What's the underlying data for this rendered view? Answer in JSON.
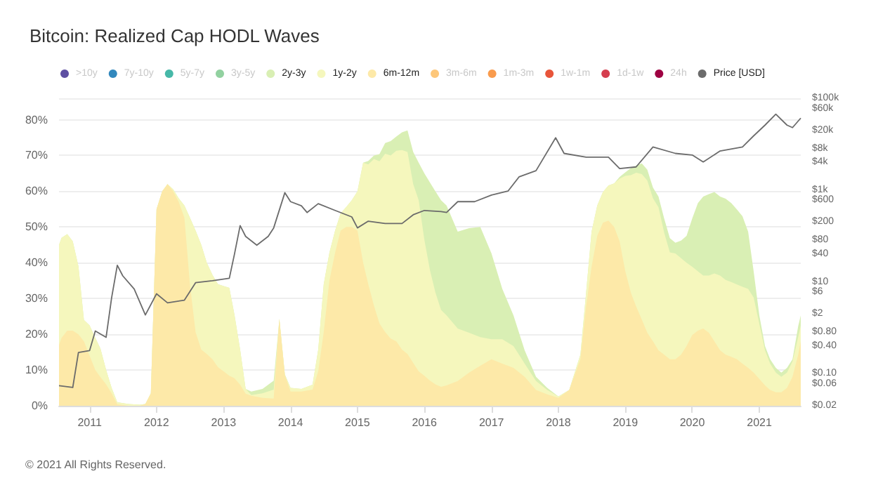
{
  "chart_data": {
    "type": "area",
    "title": "Bitcoin: Realized Cap HODL Waves",
    "annotations": [
      "© 2021 All Rights Reserved."
    ],
    "stacked": true,
    "legend": "top",
    "grid": "y",
    "marker": "none",
    "line_style": "solid",
    "x": [
      "2010-07-18",
      "2010-08",
      "2010-09",
      "2010-10",
      "2010-11",
      "2010-12",
      "2011-01",
      "2011-02",
      "2011-03",
      "2011-04",
      "2011-05",
      "2011-06",
      "2011-08",
      "2011-10",
      "2011-11",
      "2011-12",
      "2012-01",
      "2012-02",
      "2012-03",
      "2012-04",
      "2012-05",
      "2012-06",
      "2012-07",
      "2012-08",
      "2012-09",
      "2012-10",
      "2012-11",
      "2012-12",
      "2013-01",
      "2013-02",
      "2013-03",
      "2013-04",
      "2013-05",
      "2013-06",
      "2013-08",
      "2013-10",
      "2013-11",
      "2013-12",
      "2014-01",
      "2014-03",
      "2014-05",
      "2014-06",
      "2014-07",
      "2014-08",
      "2014-09",
      "2014-10",
      "2014-11",
      "2014-12",
      "2015-01",
      "2015-02",
      "2015-03",
      "2015-04",
      "2015-05",
      "2015-06",
      "2015-07",
      "2015-08",
      "2015-09",
      "2015-10",
      "2015-11",
      "2015-12",
      "2016-01",
      "2016-02",
      "2016-03",
      "2016-04",
      "2016-05",
      "2016-07",
      "2016-09",
      "2016-11",
      "2017-01",
      "2017-03",
      "2017-05",
      "2017-07",
      "2017-09",
      "2017-11",
      "2018-01",
      "2018-03",
      "2018-05",
      "2018-06",
      "2018-07",
      "2018-08",
      "2018-09",
      "2018-10",
      "2018-11",
      "2018-12",
      "2019-01",
      "2019-02",
      "2019-03",
      "2019-04",
      "2019-05",
      "2019-06",
      "2019-07",
      "2019-08",
      "2019-09",
      "2019-10",
      "2019-11",
      "2019-12",
      "2020-01",
      "2020-02",
      "2020-03",
      "2020-04",
      "2020-05",
      "2020-06",
      "2020-07",
      "2020-08",
      "2020-09",
      "2020-10",
      "2020-11",
      "2020-12",
      "2021-01",
      "2021-02",
      "2021-03",
      "2021-04",
      "2021-05",
      "2021-06",
      "2021-07",
      "2021-08",
      "2021-08-15"
    ],
    "xlim": [
      "2010-07-18",
      "2021-08-15"
    ],
    "xticks": [
      "2011",
      "2012",
      "2013",
      "2014",
      "2015",
      "2016",
      "2017",
      "2018",
      "2019",
      "2020",
      "2021"
    ],
    "ylim": [
      0,
      86
    ],
    "yticks": [
      {
        "value": 0,
        "label": "0%"
      },
      {
        "value": 10,
        "label": "10%"
      },
      {
        "value": 20,
        "label": "20%"
      },
      {
        "value": 30,
        "label": "30%"
      },
      {
        "value": 40,
        "label": "40%"
      },
      {
        "value": 50,
        "label": "50%"
      },
      {
        "value": 60,
        "label": "60%"
      },
      {
        "value": 70,
        "label": "70%"
      },
      {
        "value": 80,
        "label": "80%"
      }
    ],
    "log": "y2",
    "y2lim": [
      0.02,
      100000
    ],
    "y2ticks": [
      {
        "value": 0.02,
        "label": "$0.02"
      },
      {
        "value": 0.06,
        "label": "$0.06"
      },
      {
        "value": 0.1,
        "label": "$0.10"
      },
      {
        "value": 0.4,
        "label": "$0.40"
      },
      {
        "value": 0.8,
        "label": "$0.80"
      },
      {
        "value": 2,
        "label": "$2"
      },
      {
        "value": 6,
        "label": "$6"
      },
      {
        "value": 10,
        "label": "$10"
      },
      {
        "value": 40,
        "label": "$40"
      },
      {
        "value": 80,
        "label": "$80"
      },
      {
        "value": 200,
        "label": "$200"
      },
      {
        "value": 600,
        "label": "$600"
      },
      {
        "value": 1000,
        "label": "$1k"
      },
      {
        "value": 4000,
        "label": "$4k"
      },
      {
        "value": 8000,
        "label": "$8k"
      },
      {
        "value": 20000,
        "label": "$20k"
      },
      {
        "value": 60000,
        "label": "$60k"
      },
      {
        "value": 100000,
        "label": "$100k"
      }
    ],
    "series": [
      {
        "name": "24h",
        "color": "#9e0142",
        "values": [
          null,
          null,
          null,
          null,
          null,
          null,
          null,
          null,
          null,
          null,
          null,
          null,
          null,
          null,
          null,
          null,
          null,
          null,
          null,
          null,
          null,
          null,
          null,
          null,
          null,
          null,
          null,
          null,
          null,
          null,
          null,
          null,
          null,
          null,
          null,
          null,
          null,
          null,
          null,
          null,
          null,
          null,
          null,
          null,
          null,
          null,
          null,
          null,
          null,
          null,
          null,
          null,
          null,
          null,
          null,
          null,
          null,
          null,
          null,
          null,
          null,
          null,
          null,
          null,
          null,
          null,
          null,
          null,
          null,
          null,
          null,
          null,
          null,
          null,
          null,
          null,
          null,
          null,
          null,
          null,
          null,
          null,
          null,
          null,
          null,
          null,
          null,
          null,
          null,
          null,
          null,
          null,
          null,
          null,
          null,
          null,
          null,
          null,
          null,
          null,
          null,
          null,
          null,
          null,
          null,
          null,
          null,
          null,
          null,
          null,
          null,
          null,
          null,
          null,
          null,
          null,
          null
        ]
      },
      {
        "name": "1d-1w",
        "color": "#d53e4f",
        "values": [
          null,
          null,
          null,
          null,
          null,
          null,
          null,
          null,
          null,
          null,
          null,
          null,
          null,
          null,
          null,
          null,
          null,
          null,
          null,
          null,
          null,
          null,
          null,
          null,
          null,
          null,
          null,
          null,
          null,
          null,
          null,
          null,
          null,
          null,
          null,
          null,
          null,
          null,
          null,
          null,
          null,
          null,
          null,
          null,
          null,
          null,
          null,
          null,
          null,
          null,
          null,
          null,
          null,
          null,
          null,
          null,
          null,
          null,
          null,
          null,
          null,
          null,
          null,
          null,
          null,
          null,
          null,
          null,
          null,
          null,
          null,
          null,
          null,
          null,
          null,
          null,
          null,
          null,
          null,
          null,
          null,
          null,
          null,
          null,
          null,
          null,
          null,
          null,
          null,
          null,
          null,
          null,
          null,
          null,
          null,
          null,
          null,
          null,
          null,
          null,
          null,
          null,
          null,
          null,
          null,
          null,
          null,
          null,
          null,
          null,
          null,
          null,
          null,
          null,
          null,
          null,
          null
        ]
      },
      {
        "name": "1w-1m",
        "color": "#e8553a",
        "values": [
          null,
          null,
          null,
          null,
          null,
          null,
          null,
          null,
          null,
          null,
          null,
          null,
          null,
          null,
          null,
          null,
          null,
          null,
          null,
          null,
          null,
          null,
          null,
          null,
          null,
          null,
          null,
          null,
          null,
          null,
          null,
          null,
          null,
          null,
          null,
          null,
          null,
          null,
          null,
          null,
          null,
          null,
          null,
          null,
          null,
          null,
          null,
          null,
          null,
          null,
          null,
          null,
          null,
          null,
          null,
          null,
          null,
          null,
          null,
          null,
          null,
          null,
          null,
          null,
          null,
          null,
          null,
          null,
          null,
          null,
          null,
          null,
          null,
          null,
          null,
          null,
          null,
          null,
          null,
          null,
          null,
          null,
          null,
          null,
          null,
          null,
          null,
          null,
          null,
          null,
          null,
          null,
          null,
          null,
          null,
          null,
          null,
          null,
          null,
          null,
          null,
          null,
          null,
          null,
          null,
          null,
          null,
          null,
          null,
          null,
          null,
          null,
          null,
          null,
          null,
          null,
          null
        ]
      },
      {
        "name": "1m-3m",
        "color": "#f99b4d",
        "values": [
          null,
          null,
          null,
          null,
          null,
          null,
          null,
          null,
          null,
          null,
          null,
          null,
          null,
          null,
          null,
          null,
          null,
          null,
          null,
          null,
          null,
          null,
          null,
          null,
          null,
          null,
          null,
          null,
          null,
          null,
          null,
          null,
          null,
          null,
          null,
          null,
          null,
          null,
          null,
          null,
          null,
          null,
          null,
          null,
          null,
          null,
          null,
          null,
          null,
          null,
          null,
          null,
          null,
          null,
          null,
          null,
          null,
          null,
          null,
          null,
          null,
          null,
          null,
          null,
          null,
          null,
          null,
          null,
          null,
          null,
          null,
          null,
          null,
          null,
          null,
          null,
          null,
          null,
          null,
          null,
          null,
          null,
          null,
          null,
          null,
          null,
          null,
          null,
          null,
          null,
          null,
          null,
          null,
          null,
          null,
          null,
          null,
          null,
          null,
          null,
          null,
          null,
          null,
          null,
          null,
          null,
          null,
          null,
          null,
          null,
          null,
          null,
          null,
          null,
          null,
          null,
          null
        ]
      },
      {
        "name": "3m-6m",
        "color": "#fdc77a",
        "values": [
          null,
          null,
          null,
          null,
          null,
          null,
          null,
          null,
          null,
          null,
          null,
          null,
          null,
          null,
          null,
          null,
          null,
          null,
          null,
          null,
          null,
          null,
          null,
          null,
          null,
          null,
          null,
          null,
          null,
          null,
          null,
          null,
          null,
          null,
          null,
          null,
          null,
          null,
          null,
          null,
          null,
          null,
          null,
          null,
          null,
          null,
          null,
          null,
          null,
          null,
          null,
          null,
          null,
          null,
          null,
          null,
          null,
          null,
          null,
          null,
          null,
          null,
          null,
          null,
          null,
          null,
          null,
          null,
          null,
          null,
          null,
          null,
          null,
          null,
          null,
          null,
          null,
          null,
          null,
          null,
          null,
          null,
          null,
          null,
          null,
          null,
          null,
          null,
          null,
          null,
          null,
          null,
          null,
          null,
          null,
          null,
          null,
          null,
          null,
          null,
          null,
          null,
          null,
          null,
          null,
          null,
          null,
          null,
          null,
          null,
          null,
          null,
          null,
          null,
          null,
          null,
          null
        ]
      },
      {
        "name": "6m-12m",
        "color": "#fde9a8",
        "values": [
          17,
          19,
          21,
          21,
          20,
          18,
          14,
          10,
          8,
          6,
          3.5,
          0.4,
          0,
          0,
          0.5,
          3.5,
          55,
          60,
          62,
          60,
          57,
          52.6,
          34,
          20.6,
          15.7,
          14.5,
          13,
          10.8,
          9.6,
          8.4,
          7.7,
          5.9,
          3.4,
          2.8,
          2.2,
          2,
          24.3,
          8.6,
          4,
          4,
          4.5,
          9.6,
          20.6,
          35,
          42.8,
          49,
          50,
          50,
          49,
          40,
          34,
          28,
          23,
          20.6,
          18.8,
          18,
          15.7,
          14.5,
          12,
          9.6,
          8.4,
          7,
          6,
          5.3,
          5.7,
          6.9,
          9.3,
          11.2,
          13,
          11.8,
          10.6,
          8.1,
          4.4,
          3.2,
          2.2,
          4.4,
          13,
          27.8,
          38.9,
          47.5,
          51.2,
          51.8,
          50,
          46,
          37.6,
          31.5,
          27.8,
          24.1,
          20.4,
          18,
          15.5,
          14.3,
          13,
          13,
          14.3,
          16.7,
          19.8,
          21,
          21.6,
          20.4,
          18,
          15.5,
          14.3,
          13.7,
          13,
          11.8,
          10.6,
          9.3,
          7.5,
          5.7,
          4.4,
          3.8,
          3.8,
          5,
          8.1,
          14.3,
          18
        ]
      },
      {
        "name": "1y-2y",
        "color": "#f5f7bd",
        "values": [
          28,
          28,
          27,
          25,
          19,
          6,
          8.5,
          9,
          8,
          4,
          1.5,
          0.6,
          0.5,
          0.3,
          0,
          0,
          0,
          0,
          0,
          0.5,
          1,
          3.4,
          18.6,
          28.4,
          29.3,
          25.5,
          23.6,
          23.2,
          23.9,
          24.6,
          17.8,
          9.8,
          1.3,
          0.2,
          1.3,
          2.5,
          0,
          0,
          1,
          0.7,
          1.4,
          6.1,
          13.4,
          7.8,
          6.2,
          4.8,
          5.6,
          7.5,
          11,
          28,
          33.5,
          41,
          45.4,
          49.9,
          51.2,
          53.3,
          55.8,
          56.5,
          50,
          47.9,
          38,
          30.8,
          25.7,
          21.5,
          19.6,
          14.7,
          11.1,
          8,
          5.6,
          6.8,
          6.1,
          3.7,
          2.5,
          1.2,
          0.4,
          0,
          1.3,
          3.7,
          9.8,
          8.5,
          8.6,
          9.8,
          12.2,
          17.5,
          26.7,
          33,
          37.4,
          40.7,
          42.6,
          40,
          40,
          34.1,
          29.9,
          29.6,
          27,
          23.3,
          19.1,
          16.6,
          14.8,
          16,
          19,
          20.9,
          20.9,
          20.9,
          20.9,
          21.5,
          22.1,
          21,
          15.4,
          9.8,
          7.4,
          5.5,
          4.3,
          4.3,
          4.3,
          4.9,
          4.5
        ]
      },
      {
        "name": "2y-3y",
        "color": "#d9efb4",
        "values": [
          0,
          0,
          0,
          0,
          0,
          0,
          0,
          0,
          0,
          0,
          0,
          0,
          0,
          0,
          0,
          0,
          0,
          0,
          0,
          0,
          0,
          0,
          0,
          0,
          0,
          0,
          0,
          0,
          0,
          0,
          0,
          0,
          0,
          1,
          1.2,
          2.5,
          0,
          0.2,
          0,
          0,
          0,
          0,
          0,
          0,
          0,
          0,
          0,
          0,
          0,
          0,
          1,
          1,
          2,
          3,
          4,
          4,
          5,
          6,
          9,
          10.5,
          18.6,
          24.6,
          28.3,
          30.7,
          30.7,
          27.1,
          29.3,
          30.8,
          24,
          14.1,
          8.6,
          3.7,
          1.2,
          0.6,
          0,
          0,
          0,
          0,
          0,
          0,
          0,
          0,
          0,
          0.5,
          1,
          2,
          2,
          3,
          3,
          3,
          3,
          4,
          4,
          3,
          4.9,
          7.5,
          13.5,
          19.1,
          22.1,
          22.8,
          22.8,
          22.1,
          22.7,
          22.1,
          21,
          19.7,
          16,
          7.3,
          2.4,
          1.2,
          1.2,
          1.3,
          1.2,
          1.3,
          0.6,
          3.1,
          2.8
        ]
      },
      {
        "name": "3y-5y",
        "color": "#92d1a0",
        "values": [
          null,
          null,
          null,
          null,
          null,
          null,
          null,
          null,
          null,
          null,
          null,
          null,
          null,
          null,
          null,
          null,
          null,
          null,
          null,
          null,
          null,
          null,
          null,
          null,
          null,
          null,
          null,
          null,
          null,
          null,
          null,
          null,
          null,
          null,
          null,
          null,
          null,
          null,
          null,
          null,
          null,
          null,
          null,
          null,
          null,
          null,
          null,
          null,
          null,
          null,
          null,
          null,
          null,
          null,
          null,
          null,
          null,
          null,
          null,
          null,
          null,
          null,
          null,
          null,
          null,
          null,
          null,
          null,
          null,
          null,
          null,
          null,
          null,
          null,
          null,
          null,
          null,
          null,
          null,
          null,
          null,
          null,
          null,
          null,
          null,
          null,
          null,
          null,
          null,
          null,
          null,
          null,
          null,
          null,
          null,
          null,
          null,
          null,
          null,
          null,
          null,
          null,
          null,
          null,
          null,
          null,
          null,
          null,
          null,
          null,
          null,
          null,
          null,
          null,
          null,
          null,
          null
        ]
      },
      {
        "name": "5y-7y",
        "color": "#47b8a8",
        "values": [
          null,
          null,
          null,
          null,
          null,
          null,
          null,
          null,
          null,
          null,
          null,
          null,
          null,
          null,
          null,
          null,
          null,
          null,
          null,
          null,
          null,
          null,
          null,
          null,
          null,
          null,
          null,
          null,
          null,
          null,
          null,
          null,
          null,
          null,
          null,
          null,
          null,
          null,
          null,
          null,
          null,
          null,
          null,
          null,
          null,
          null,
          null,
          null,
          null,
          null,
          null,
          null,
          null,
          null,
          null,
          null,
          null,
          null,
          null,
          null,
          null,
          null,
          null,
          null,
          null,
          null,
          null,
          null,
          null,
          null,
          null,
          null,
          null,
          null,
          null,
          null,
          null,
          null,
          null,
          null,
          null,
          null,
          null,
          null,
          null,
          null,
          null,
          null,
          null,
          null,
          null,
          null,
          null,
          null,
          null,
          null,
          null,
          null,
          null,
          null,
          null,
          null,
          null,
          null,
          null,
          null,
          null,
          null,
          null,
          null,
          null,
          null,
          null,
          null,
          null,
          null,
          null
        ]
      },
      {
        "name": "7y-10y",
        "color": "#3288bd",
        "values": [
          null,
          null,
          null,
          null,
          null,
          null,
          null,
          null,
          null,
          null,
          null,
          null,
          null,
          null,
          null,
          null,
          null,
          null,
          null,
          null,
          null,
          null,
          null,
          null,
          null,
          null,
          null,
          null,
          null,
          null,
          null,
          null,
          null,
          null,
          null,
          null,
          null,
          null,
          null,
          null,
          null,
          null,
          null,
          null,
          null,
          null,
          null,
          null,
          null,
          null,
          null,
          null,
          null,
          null,
          null,
          null,
          null,
          null,
          null,
          null,
          null,
          null,
          null,
          null,
          null,
          null,
          null,
          null,
          null,
          null,
          null,
          null,
          null,
          null,
          null,
          null,
          null,
          null,
          null,
          null,
          null,
          null,
          null,
          null,
          null,
          null,
          null,
          null,
          null,
          null,
          null,
          null,
          null,
          null,
          null,
          null,
          null,
          null,
          null,
          null,
          null,
          null,
          null,
          null,
          null,
          null,
          null,
          null,
          null,
          null,
          null,
          null,
          null,
          null,
          null,
          null,
          null
        ]
      },
      {
        "name": ">10y",
        "color": "#5e4fa2",
        "values": [
          null,
          null,
          null,
          null,
          null,
          null,
          null,
          null,
          null,
          null,
          null,
          null,
          null,
          null,
          null,
          null,
          null,
          null,
          null,
          null,
          null,
          null,
          null,
          null,
          null,
          null,
          null,
          null,
          null,
          null,
          null,
          null,
          null,
          null,
          null,
          null,
          null,
          null,
          null,
          null,
          null,
          null,
          null,
          null,
          null,
          null,
          null,
          null,
          null,
          null,
          null,
          null,
          null,
          null,
          null,
          null,
          null,
          null,
          null,
          null,
          null,
          null,
          null,
          null,
          null,
          null,
          null,
          null,
          null,
          null,
          null,
          null,
          null,
          null,
          null,
          null,
          null,
          null,
          null,
          null,
          null,
          null,
          null,
          null,
          null,
          null,
          null,
          null,
          null,
          null,
          null,
          null,
          null,
          null,
          null,
          null,
          null,
          null,
          null,
          null,
          null,
          null,
          null,
          null,
          null,
          null,
          null,
          null,
          null,
          null,
          null,
          null,
          null,
          null,
          null,
          null,
          null
        ]
      },
      {
        "name": "Price [USD]",
        "type": "line",
        "axis": "y2",
        "color": "#6b6b6b",
        "x": [
          "2010-07-18",
          "2010-10",
          "2010-11",
          "2011-01",
          "2011-02",
          "2011-04",
          "2011-05",
          "2011-06",
          "2011-07",
          "2011-09",
          "2011-11",
          "2012-01",
          "2012-03",
          "2012-06",
          "2012-08",
          "2012-11",
          "2013-02",
          "2013-03",
          "2013-04",
          "2013-05",
          "2013-07",
          "2013-09",
          "2013-10",
          "2013-12",
          "2014-01",
          "2014-03",
          "2014-04",
          "2014-06",
          "2014-09",
          "2014-12",
          "2015-01",
          "2015-03",
          "2015-06",
          "2015-09",
          "2015-11",
          "2016-01",
          "2016-04",
          "2016-05",
          "2016-07",
          "2016-10",
          "2017-01",
          "2017-04",
          "2017-06",
          "2017-09",
          "2017-12-17",
          "2018-02",
          "2018-06",
          "2018-10",
          "2018-12",
          "2019-03",
          "2019-06",
          "2019-10",
          "2020-01",
          "2020-03",
          "2020-06",
          "2020-10",
          "2020-12",
          "2021-02",
          "2021-04",
          "2021-06",
          "2021-07",
          "2021-08-15"
        ],
        "values": [
          0.055,
          0.05,
          0.29,
          0.32,
          0.85,
          0.62,
          4.5,
          23,
          13.5,
          7,
          1.9,
          5.5,
          3.5,
          4,
          9.6,
          10.6,
          12,
          40,
          168,
          98,
          63,
          98,
          150,
          880,
          560,
          455,
          325,
          505,
          360,
          260,
          150,
          210,
          187,
          187,
          290,
          360,
          340,
          325,
          560,
          560,
          780,
          950,
          1950,
          2650,
          13800,
          6300,
          5200,
          5200,
          2950,
          3200,
          8700,
          6300,
          5800,
          4100,
          7100,
          8700,
          15200,
          26000,
          45000,
          26000,
          23000,
          37000
        ]
      }
    ]
  }
}
